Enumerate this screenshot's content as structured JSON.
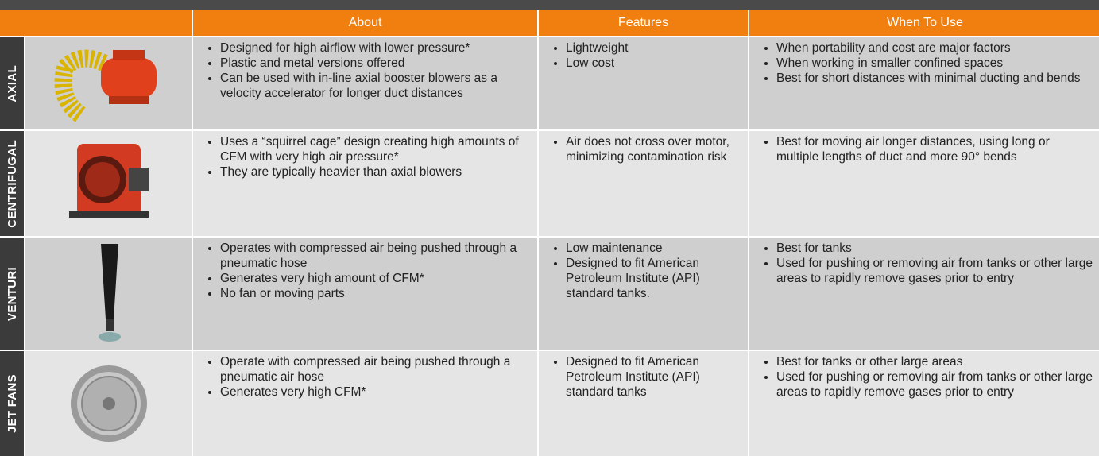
{
  "table": {
    "columns": [
      "About",
      "Features",
      "When To Use"
    ],
    "rows": [
      {
        "name": "AXIAL",
        "about": [
          "Designed for high airflow with lower pressure*",
          "Plastic and metal versions offered",
          "Can be used with in-line axial booster blowers as a velocity accelerator for longer duct distances"
        ],
        "features": [
          "Lightweight",
          "Low cost"
        ],
        "when": [
          "When portability and cost are major factors",
          "When working in smaller confined spaces",
          "Best for short distances with minimal ducting and bends"
        ]
      },
      {
        "name": "CENTRIFUGAL",
        "about": [
          "Uses a “squirrel cage” design creating high amounts of CFM with very high air pressure*",
          "They are typically heavier than axial blowers"
        ],
        "features": [
          "Air does not cross over motor, minimizing contamination risk"
        ],
        "when": [
          "Best for moving air longer distances, using long or multiple lengths of duct and more 90° bends"
        ]
      },
      {
        "name": "VENTURI",
        "about": [
          "Operates with compressed air being pushed through a pneumatic hose",
          "Generates very high amount of CFM*",
          "No fan or moving parts"
        ],
        "features": [
          "Low maintenance",
          "Designed to fit American Petroleum Institute (API) standard tanks."
        ],
        "when": [
          "Best for tanks",
          "Used for pushing or removing air from tanks or other large areas to rapidly remove gases prior to entry"
        ]
      },
      {
        "name": "JET FANS",
        "about": [
          "Operate with compressed air being pushed through a pneumatic air hose",
          "Generates very high CFM*"
        ],
        "features": [
          "Designed to fit American Petroleum Institute (API) standard tanks"
        ],
        "when": [
          "Best for tanks or other large areas",
          "Used for pushing or removing air from tanks or other large areas to rapidly remove gases prior to entry"
        ]
      }
    ]
  }
}
